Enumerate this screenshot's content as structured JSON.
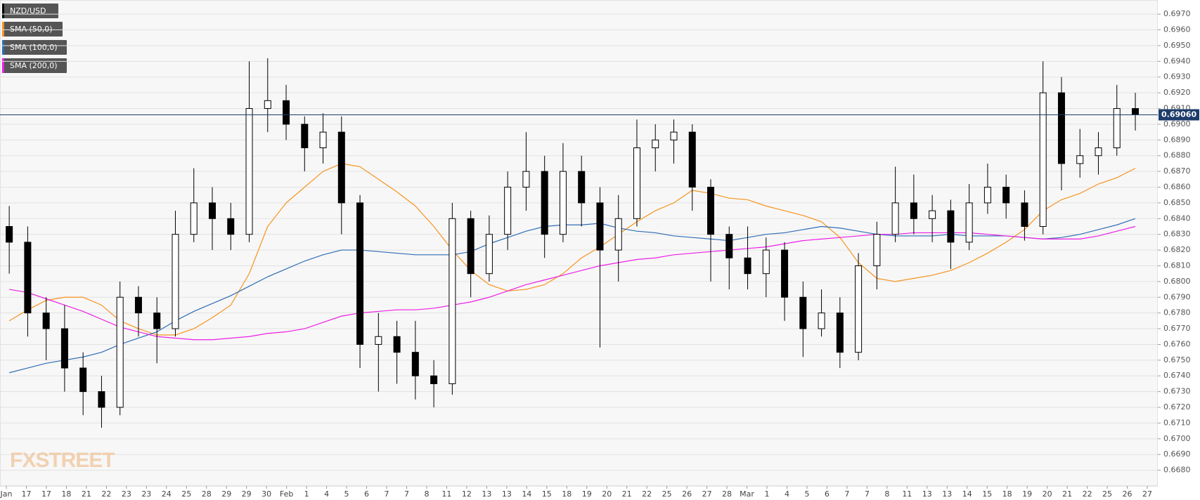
{
  "chart_data": {
    "type": "candlestick",
    "watermark": "FXSTREET",
    "ylim": [
      0.667,
      0.6979
    ],
    "grid": true,
    "yticks": [
      {
        "value": 0.668,
        "label": "0.6680"
      },
      {
        "value": 0.669,
        "label": "0.6690"
      },
      {
        "value": 0.67,
        "label": "0.6700"
      },
      {
        "value": 0.671,
        "label": "0.6710"
      },
      {
        "value": 0.672,
        "label": "0.6720"
      },
      {
        "value": 0.673,
        "label": "0.6730"
      },
      {
        "value": 0.674,
        "label": "0.6740"
      },
      {
        "value": 0.675,
        "label": "0.6750"
      },
      {
        "value": 0.676,
        "label": "0.6760"
      },
      {
        "value": 0.677,
        "label": "0.6770"
      },
      {
        "value": 0.678,
        "label": "0.6780"
      },
      {
        "value": 0.679,
        "label": "0.6790"
      },
      {
        "value": 0.68,
        "label": "0.6800"
      },
      {
        "value": 0.681,
        "label": "0.6810"
      },
      {
        "value": 0.682,
        "label": "0.6820"
      },
      {
        "value": 0.683,
        "label": "0.6830"
      },
      {
        "value": 0.684,
        "label": "0.6840"
      },
      {
        "value": 0.685,
        "label": "0.6850"
      },
      {
        "value": 0.686,
        "label": "0.6860"
      },
      {
        "value": 0.687,
        "label": "0.6870"
      },
      {
        "value": 0.688,
        "label": "0.6880"
      },
      {
        "value": 0.689,
        "label": "0.6890"
      },
      {
        "value": 0.69,
        "label": "0.6900"
      },
      {
        "value": 0.691,
        "label": "0.6910"
      },
      {
        "value": 0.692,
        "label": "0.6920"
      },
      {
        "value": 0.693,
        "label": "0.6930"
      },
      {
        "value": 0.694,
        "label": "0.6940"
      },
      {
        "value": 0.695,
        "label": "0.6950"
      },
      {
        "value": 0.696,
        "label": "0.6960"
      },
      {
        "value": 0.697,
        "label": "0.6970"
      }
    ],
    "current_price": {
      "value": 0.6906,
      "label": "0.69060"
    },
    "xtick_labels": [
      "Jan",
      "17",
      "17",
      "18",
      "21",
      "22",
      "23",
      "23",
      "24",
      "25",
      "28",
      "29",
      "29",
      "30",
      "Feb",
      "1",
      "4",
      "5",
      "6",
      "7",
      "7",
      "8",
      "11",
      "12",
      "13",
      "13",
      "14",
      "15",
      "18",
      "19",
      "20",
      "21",
      "22",
      "25",
      "26",
      "27",
      "28",
      "Mar",
      "1",
      "4",
      "5",
      "6",
      "7",
      "7",
      "8",
      "11",
      "13",
      "13",
      "14",
      "15",
      "18",
      "19",
      "20",
      "21",
      "22",
      "25",
      "26",
      "27"
    ],
    "series": [
      {
        "name": "NZD/USD",
        "color": "#000000",
        "open": [
          0.6835,
          0.6825,
          0.678,
          0.677,
          0.6745,
          0.673,
          0.672,
          0.679,
          0.678,
          0.677,
          0.683,
          0.685,
          0.684,
          0.683,
          0.691,
          0.6915,
          0.69,
          0.6885,
          0.6895,
          0.685,
          0.676,
          0.6765,
          0.6755,
          0.674,
          0.6735,
          0.684,
          0.6805,
          0.683,
          0.686,
          0.687,
          0.683,
          0.687,
          0.685,
          0.682,
          0.684,
          0.6885,
          0.689,
          0.6895,
          0.686,
          0.683,
          0.6815,
          0.6805,
          0.682,
          0.679,
          0.677,
          0.678,
          0.6755,
          0.681,
          0.683,
          0.685,
          0.684,
          0.6845,
          0.6825,
          0.685,
          0.686,
          0.685,
          0.6835,
          0.692,
          0.6875,
          0.688,
          0.6885,
          0.691
        ],
        "high": [
          0.6848,
          0.6835,
          0.679,
          0.6785,
          0.6755,
          0.674,
          0.68,
          0.6797,
          0.679,
          0.6845,
          0.6872,
          0.686,
          0.685,
          0.694,
          0.6942,
          0.6925,
          0.6905,
          0.6907,
          0.6905,
          0.6855,
          0.678,
          0.6775,
          0.6775,
          0.675,
          0.685,
          0.6845,
          0.6842,
          0.687,
          0.6895,
          0.688,
          0.6888,
          0.688,
          0.686,
          0.6855,
          0.6903,
          0.69,
          0.6903,
          0.69,
          0.6865,
          0.6835,
          0.6835,
          0.6828,
          0.6825,
          0.68,
          0.6795,
          0.679,
          0.6818,
          0.6838,
          0.6873,
          0.6868,
          0.6855,
          0.6852,
          0.6862,
          0.6875,
          0.6868,
          0.6858,
          0.694,
          0.693,
          0.6897,
          0.6895,
          0.6925,
          0.692
        ],
        "low": [
          0.6805,
          0.6765,
          0.675,
          0.673,
          0.6715,
          0.6707,
          0.6715,
          0.6765,
          0.6748,
          0.6765,
          0.6825,
          0.682,
          0.682,
          0.6825,
          0.6895,
          0.689,
          0.687,
          0.6875,
          0.683,
          0.6745,
          0.673,
          0.6735,
          0.6725,
          0.672,
          0.6728,
          0.679,
          0.68,
          0.682,
          0.6845,
          0.6815,
          0.6825,
          0.6835,
          0.6758,
          0.68,
          0.6835,
          0.687,
          0.6875,
          0.6845,
          0.68,
          0.6795,
          0.6795,
          0.679,
          0.6775,
          0.6752,
          0.6765,
          0.6745,
          0.675,
          0.6795,
          0.6825,
          0.683,
          0.6825,
          0.6808,
          0.682,
          0.6843,
          0.684,
          0.6826,
          0.683,
          0.6858,
          0.6866,
          0.6868,
          0.688,
          0.6896
        ],
        "close": [
          0.6825,
          0.678,
          0.677,
          0.6745,
          0.673,
          0.672,
          0.679,
          0.678,
          0.677,
          0.683,
          0.685,
          0.684,
          0.683,
          0.691,
          0.6915,
          0.69,
          0.6885,
          0.6895,
          0.685,
          0.676,
          0.6765,
          0.6755,
          0.674,
          0.6735,
          0.684,
          0.6805,
          0.683,
          0.686,
          0.687,
          0.683,
          0.687,
          0.685,
          0.682,
          0.684,
          0.6885,
          0.689,
          0.6895,
          0.686,
          0.683,
          0.6815,
          0.6805,
          0.682,
          0.679,
          0.677,
          0.678,
          0.6755,
          0.681,
          0.683,
          0.685,
          0.684,
          0.6845,
          0.6825,
          0.685,
          0.686,
          0.685,
          0.6835,
          0.692,
          0.6875,
          0.688,
          0.6885,
          0.691,
          0.6906
        ]
      },
      {
        "name": "SMA (50,0)",
        "color": "#f7931e",
        "values": [
          0.6775,
          0.6782,
          0.6788,
          0.679,
          0.679,
          0.6785,
          0.6775,
          0.677,
          0.6766,
          0.6766,
          0.677,
          0.6777,
          0.6785,
          0.6805,
          0.6835,
          0.685,
          0.686,
          0.687,
          0.6875,
          0.6873,
          0.6865,
          0.6857,
          0.6848,
          0.6835,
          0.682,
          0.6807,
          0.6798,
          0.6794,
          0.6795,
          0.6798,
          0.6805,
          0.6815,
          0.6822,
          0.683,
          0.6838,
          0.6845,
          0.685,
          0.6858,
          0.6856,
          0.6853,
          0.6852,
          0.6848,
          0.6845,
          0.6842,
          0.6838,
          0.6828,
          0.6812,
          0.6802,
          0.68,
          0.6802,
          0.6804,
          0.6807,
          0.6812,
          0.6818,
          0.6825,
          0.6833,
          0.6845,
          0.6852,
          0.6856,
          0.6862,
          0.6866,
          0.6872
        ]
      },
      {
        "name": "SMA (100,0)",
        "color": "#2f6db5",
        "values": [
          0.6742,
          0.6745,
          0.6748,
          0.675,
          0.6752,
          0.6755,
          0.676,
          0.6764,
          0.6768,
          0.6775,
          0.6781,
          0.6786,
          0.6791,
          0.6797,
          0.6803,
          0.6808,
          0.6813,
          0.6817,
          0.682,
          0.682,
          0.6819,
          0.6818,
          0.6817,
          0.6817,
          0.6817,
          0.6819,
          0.6824,
          0.6828,
          0.6832,
          0.6835,
          0.6836,
          0.6836,
          0.6837,
          0.6834,
          0.6832,
          0.6831,
          0.6829,
          0.6828,
          0.6827,
          0.6826,
          0.6828,
          0.683,
          0.6831,
          0.6833,
          0.6835,
          0.6834,
          0.6832,
          0.683,
          0.6829,
          0.6829,
          0.6829,
          0.683,
          0.6829,
          0.6829,
          0.6829,
          0.6828,
          0.6827,
          0.6828,
          0.683,
          0.6833,
          0.6836,
          0.684
        ]
      },
      {
        "name": "SMA (200,0)",
        "color": "#ee1ee6",
        "values": [
          0.6795,
          0.6793,
          0.6789,
          0.6785,
          0.6781,
          0.6776,
          0.6771,
          0.6768,
          0.6765,
          0.6764,
          0.6763,
          0.6763,
          0.6764,
          0.6765,
          0.6767,
          0.6768,
          0.677,
          0.6774,
          0.6778,
          0.678,
          0.6781,
          0.6782,
          0.6782,
          0.6783,
          0.6785,
          0.6787,
          0.679,
          0.6794,
          0.6798,
          0.6801,
          0.6804,
          0.6807,
          0.681,
          0.6812,
          0.6814,
          0.6815,
          0.6817,
          0.6818,
          0.6819,
          0.682,
          0.6821,
          0.6822,
          0.6824,
          0.6826,
          0.6827,
          0.6828,
          0.6829,
          0.683,
          0.683,
          0.6831,
          0.6831,
          0.6831,
          0.6831,
          0.683,
          0.6829,
          0.6828,
          0.6827,
          0.6827,
          0.6827,
          0.6829,
          0.6832,
          0.6835
        ]
      }
    ]
  }
}
